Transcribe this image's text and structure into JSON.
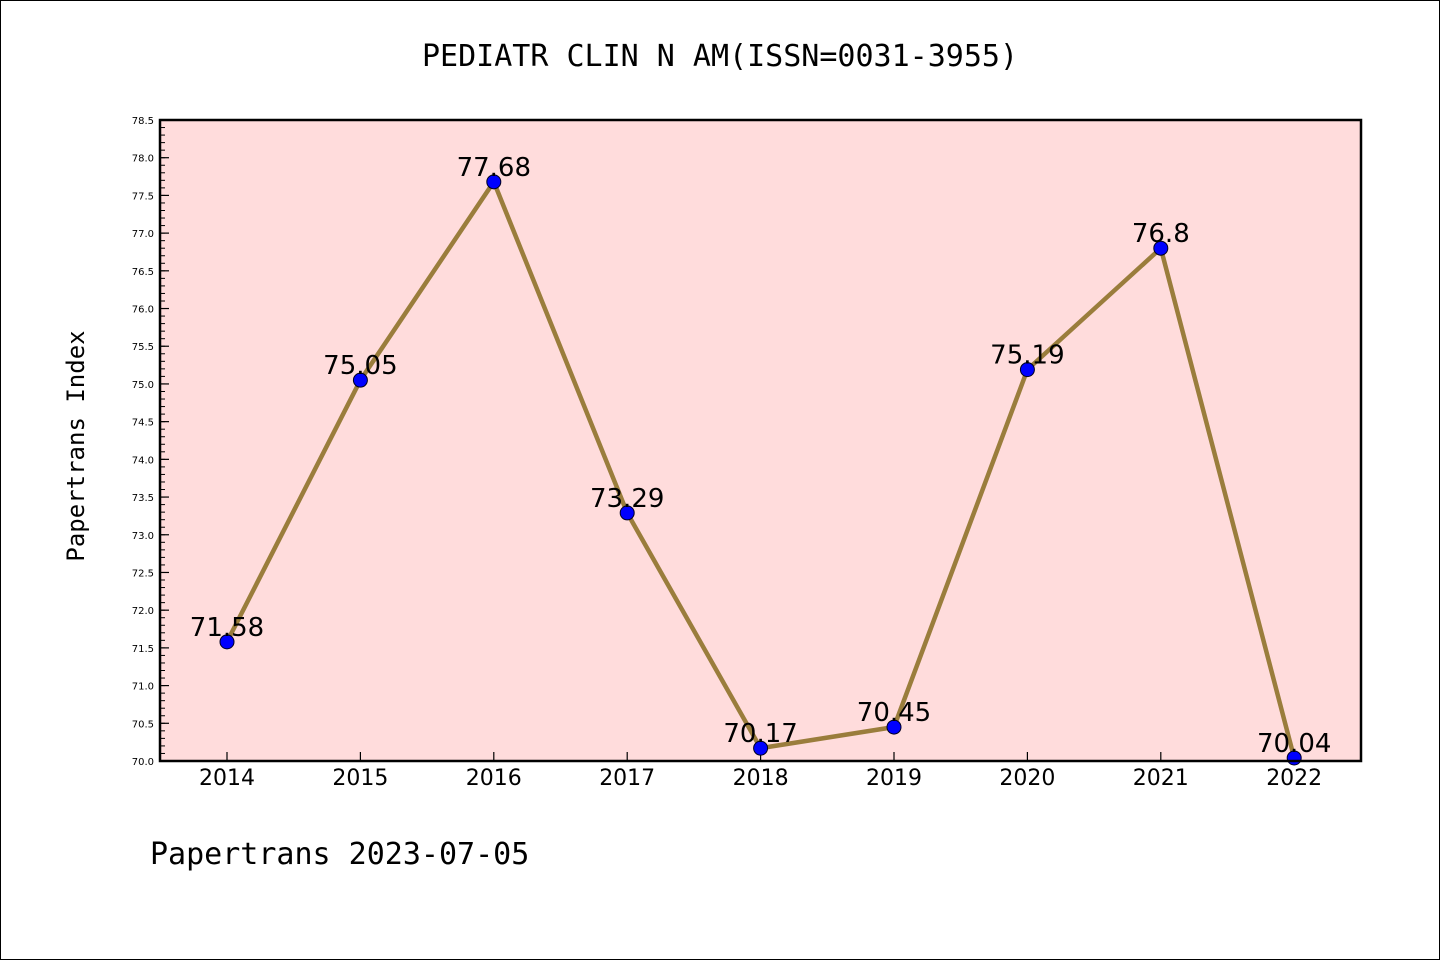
{
  "chart_data": {
    "type": "line",
    "title": "PEDIATR CLIN N AM(ISSN=0031-3955)",
    "ylabel": "Papertrans Index",
    "xlabel": "",
    "footer": "Papertrans 2023-07-05",
    "categories": [
      "2014",
      "2015",
      "2016",
      "2017",
      "2018",
      "2019",
      "2020",
      "2021",
      "2022"
    ],
    "series": [
      {
        "values": [
          71.58,
          75.05,
          77.68,
          73.29,
          70.17,
          70.45,
          75.19,
          76.8,
          70.04
        ],
        "data_labels": [
          "71.58",
          "75.05",
          "77.68",
          "73.29",
          "70.17",
          "70.45",
          "75.19",
          "76.8",
          "70.04"
        ]
      }
    ],
    "ylim": [
      70.0,
      78.5
    ],
    "yticks": [
      "70.0",
      "70.5",
      "71.0",
      "71.5",
      "72.0",
      "72.5",
      "73.0",
      "73.5",
      "74.0",
      "74.5",
      "75.0",
      "75.5",
      "76.0",
      "76.5",
      "77.0",
      "77.5",
      "78.0",
      "78.5"
    ],
    "grid": false,
    "colors": {
      "plot_background": "#ffdcdc",
      "line": "#9a7d3c",
      "marker": "#0000ff"
    }
  }
}
